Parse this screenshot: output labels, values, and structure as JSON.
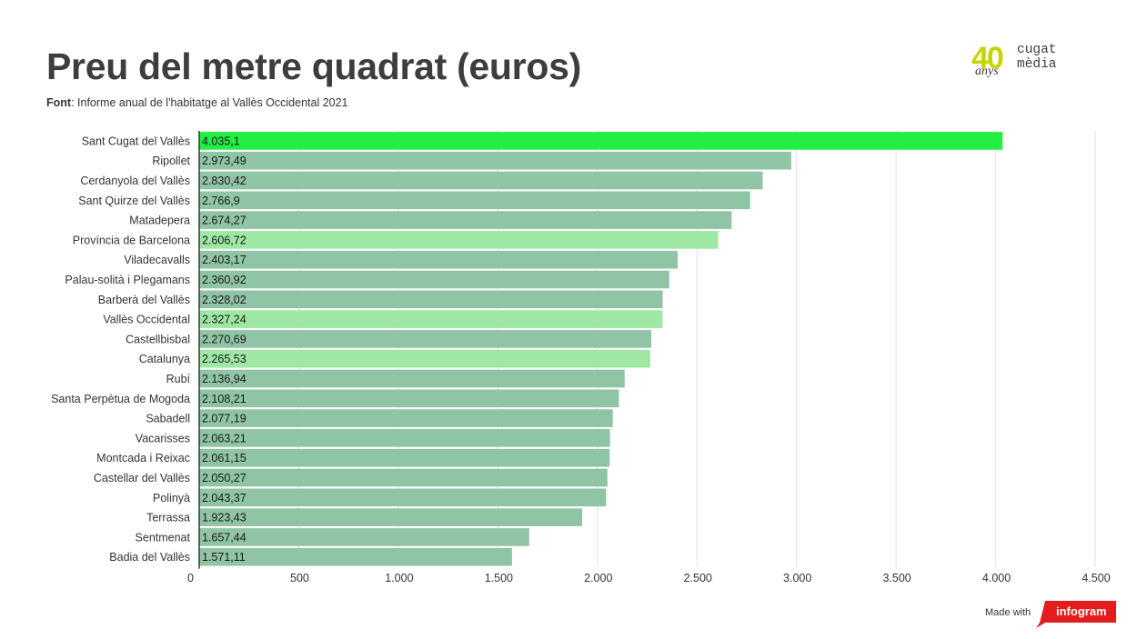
{
  "header": {
    "title": "Preu del metre quadrat (euros)",
    "source_label": "Font",
    "source_text": ": Informe anual de l'habitatge al Vallès Occidental 2021"
  },
  "logo": {
    "number": "40",
    "anys": "anys",
    "brand": "cugat\nmèdia",
    "color_number": "#c8d400"
  },
  "footer": {
    "made_with": "Made with",
    "brand": "infogram",
    "color": "#e31d1d"
  },
  "chart_data": {
    "type": "bar",
    "orientation": "horizontal",
    "title": "Preu del metre quadrat (euros)",
    "categories": [
      "Sant Cugat del Vallès",
      "Ripollet",
      "Cerdanyola del Vallès",
      "Sant Quirze del Vallès",
      "Matadepera",
      "Província de Barcelona",
      "Viladecavalls",
      "Palau-solità i Plegamans",
      "Barberà del Vallès",
      "Vallès Occidental",
      "Castellbisbal",
      "Catalunya",
      "Rubí",
      "Santa Perpètua de Mogoda",
      "Sabadell",
      "Vacarisses",
      "Montcada i Reixac",
      "Castellar del Vallès",
      "Polinyà",
      "Terrassa",
      "Sentmenat",
      "Badia del Vallès"
    ],
    "values": [
      4035.1,
      2973.49,
      2830.42,
      2766.9,
      2674.27,
      2606.72,
      2403.17,
      2360.92,
      2328.02,
      2327.24,
      2270.69,
      2265.53,
      2136.94,
      2108.21,
      2077.19,
      2063.21,
      2061.15,
      2050.27,
      2043.37,
      1923.43,
      1657.44,
      1571.11
    ],
    "value_labels": [
      "4.035,1",
      "2.973,49",
      "2.830,42",
      "2.766,9",
      "2.674,27",
      "2.606,72",
      "2.403,17",
      "2.360,92",
      "2.328,02",
      "2.327,24",
      "2.270,69",
      "2.265,53",
      "2.136,94",
      "2.108,21",
      "2.077,19",
      "2.063,21",
      "2.061,15",
      "2.050,27",
      "2.043,37",
      "1.923,43",
      "1.657,44",
      "1.571,11"
    ],
    "bar_colors": [
      "#22ee44",
      "#8fc4a4",
      "#8fc4a4",
      "#8fc4a4",
      "#8fc4a4",
      "#9ee8a4",
      "#8fc4a4",
      "#8fc4a4",
      "#8fc4a4",
      "#9ee8a4",
      "#8fc4a4",
      "#9ee8a4",
      "#8fc4a4",
      "#8fc4a4",
      "#8fc4a4",
      "#8fc4a4",
      "#8fc4a4",
      "#8fc4a4",
      "#8fc4a4",
      "#8fc4a4",
      "#8fc4a4",
      "#8fc4a4"
    ],
    "xlim": [
      0,
      4500
    ],
    "xticks": [
      0,
      500,
      1000,
      1500,
      2000,
      2500,
      3000,
      3500,
      4000,
      4500
    ],
    "xtick_labels": [
      "0",
      "500",
      "1.000",
      "1.500",
      "2.000",
      "2.500",
      "3.000",
      "3.500",
      "4.000",
      "4.500"
    ],
    "grid": true,
    "xlabel": "",
    "ylabel": ""
  }
}
